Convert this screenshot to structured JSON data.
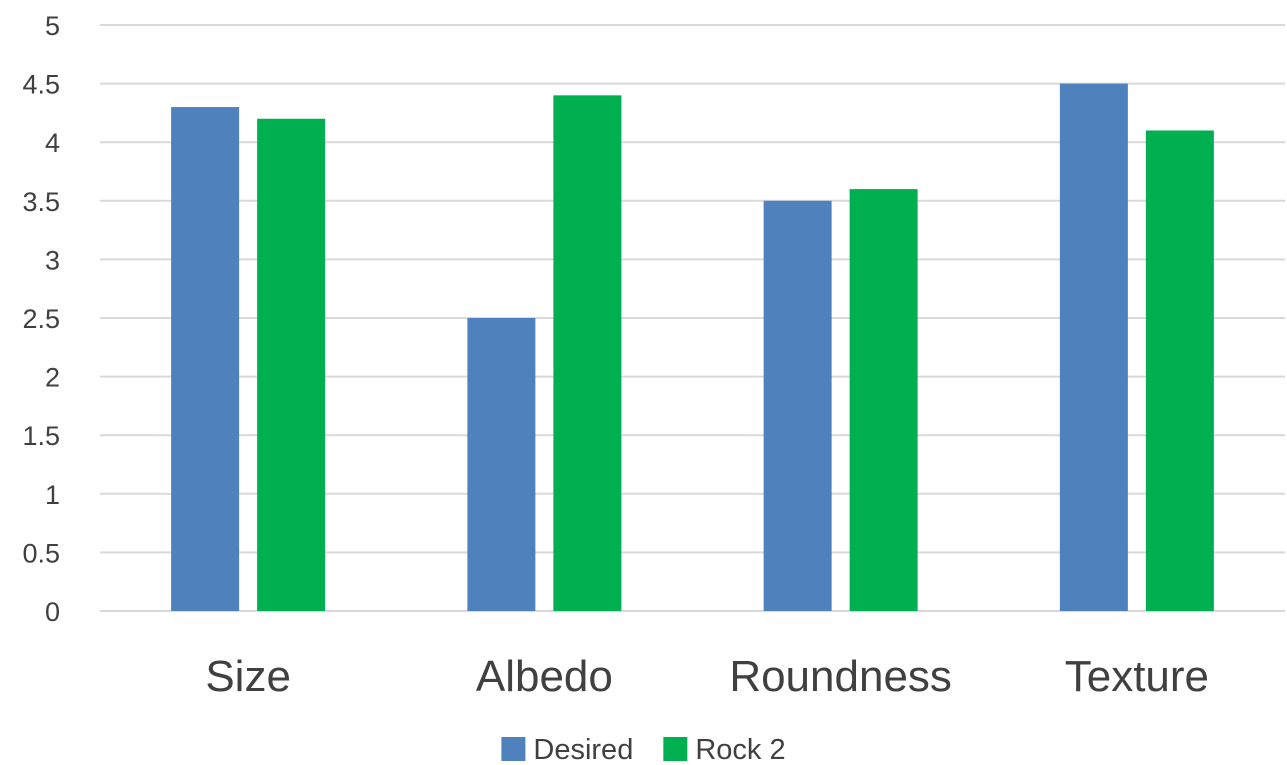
{
  "chart_data": {
    "type": "bar",
    "title": "",
    "xlabel": "",
    "ylabel": "",
    "categories": [
      "Size",
      "Albedo",
      "Roundness",
      "Texture"
    ],
    "series": [
      {
        "name": "Desired",
        "color": "#4f81bd",
        "values": [
          4.3,
          2.5,
          3.5,
          4.5
        ]
      },
      {
        "name": "Rock 2",
        "color": "#00b050",
        "values": [
          4.2,
          4.4,
          3.6,
          4.1
        ]
      }
    ],
    "ylim": [
      0,
      5
    ],
    "yticks": [
      "0",
      "0.5",
      "1",
      "1.5",
      "2",
      "2.5",
      "3",
      "3.5",
      "4",
      "4.5",
      "5"
    ],
    "grid": true,
    "legend": "bottom-center"
  }
}
